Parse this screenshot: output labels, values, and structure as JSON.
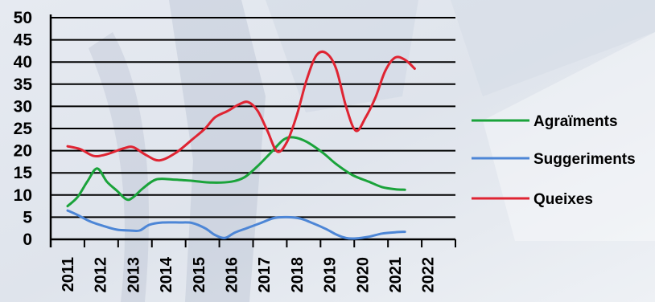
{
  "chart_data": {
    "type": "line",
    "title": "",
    "xlabel": "",
    "ylabel": "",
    "ylim": [
      0,
      50
    ],
    "yticks": [
      0,
      5,
      10,
      15,
      20,
      25,
      30,
      35,
      40,
      45,
      50
    ],
    "xticks": [
      "2011",
      "2012",
      "2013",
      "2014",
      "2015",
      "2016",
      "2017",
      "2018",
      "2019",
      "2020",
      "2021",
      "2022"
    ],
    "grid": true,
    "legend": "right",
    "series": [
      {
        "name": "Agraïments",
        "color": "#1aa33a",
        "points": [
          [
            2011.0,
            7.5
          ],
          [
            2011.3,
            9.5
          ],
          [
            2011.6,
            13
          ],
          [
            2011.9,
            16
          ],
          [
            2012.2,
            13
          ],
          [
            2012.5,
            11
          ],
          [
            2012.8,
            9
          ],
          [
            2013.0,
            9.5
          ],
          [
            2013.3,
            11.5
          ],
          [
            2013.7,
            13.5
          ],
          [
            2014.2,
            13.5
          ],
          [
            2014.8,
            13.2
          ],
          [
            2015.4,
            12.8
          ],
          [
            2016.0,
            13
          ],
          [
            2016.4,
            14
          ],
          [
            2016.8,
            16.5
          ],
          [
            2017.2,
            19.5
          ],
          [
            2017.6,
            22.5
          ],
          [
            2017.9,
            23
          ],
          [
            2018.3,
            22
          ],
          [
            2018.8,
            19.5
          ],
          [
            2019.2,
            17
          ],
          [
            2019.7,
            14.5
          ],
          [
            2020.2,
            13
          ],
          [
            2020.6,
            11.8
          ],
          [
            2021.0,
            11.3
          ],
          [
            2021.3,
            11.2
          ]
        ]
      },
      {
        "name": "Suggeriments",
        "color": "#4d86d6",
        "points": [
          [
            2011.0,
            6.5
          ],
          [
            2011.3,
            5.5
          ],
          [
            2011.7,
            4
          ],
          [
            2012.1,
            3
          ],
          [
            2012.5,
            2.2
          ],
          [
            2012.9,
            2
          ],
          [
            2013.2,
            2
          ],
          [
            2013.5,
            3.3
          ],
          [
            2013.9,
            3.8
          ],
          [
            2014.4,
            3.8
          ],
          [
            2014.8,
            3.7
          ],
          [
            2015.2,
            2.5
          ],
          [
            2015.5,
            1
          ],
          [
            2015.8,
            0.3
          ],
          [
            2016.1,
            1.5
          ],
          [
            2016.5,
            2.6
          ],
          [
            2016.9,
            3.7
          ],
          [
            2017.3,
            4.8
          ],
          [
            2017.7,
            5
          ],
          [
            2018.1,
            4.7
          ],
          [
            2018.5,
            3.6
          ],
          [
            2018.9,
            2.3
          ],
          [
            2019.2,
            1.1
          ],
          [
            2019.5,
            0.3
          ],
          [
            2019.8,
            0.2
          ],
          [
            2020.2,
            0.6
          ],
          [
            2020.6,
            1.3
          ],
          [
            2021.0,
            1.6
          ],
          [
            2021.3,
            1.7
          ]
        ]
      },
      {
        "name": "Queixes",
        "color": "#df2432",
        "points": [
          [
            2011.0,
            21
          ],
          [
            2011.4,
            20.3
          ],
          [
            2011.8,
            18.8
          ],
          [
            2012.2,
            19.2
          ],
          [
            2012.7,
            20.5
          ],
          [
            2013.0,
            20.8
          ],
          [
            2013.4,
            19
          ],
          [
            2013.8,
            17.8
          ],
          [
            2014.3,
            19.5
          ],
          [
            2014.8,
            22.5
          ],
          [
            2015.2,
            25
          ],
          [
            2015.5,
            27.5
          ],
          [
            2015.9,
            29
          ],
          [
            2016.2,
            30.3
          ],
          [
            2016.5,
            31
          ],
          [
            2016.8,
            29
          ],
          [
            2017.1,
            24.5
          ],
          [
            2017.4,
            19.8
          ],
          [
            2017.7,
            22
          ],
          [
            2018.0,
            28
          ],
          [
            2018.3,
            36
          ],
          [
            2018.6,
            41.5
          ],
          [
            2018.9,
            42
          ],
          [
            2019.2,
            38.5
          ],
          [
            2019.5,
            30
          ],
          [
            2019.8,
            24.5
          ],
          [
            2020.1,
            27.5
          ],
          [
            2020.4,
            32
          ],
          [
            2020.7,
            38
          ],
          [
            2021.0,
            41
          ],
          [
            2021.3,
            40.5
          ],
          [
            2021.6,
            38.5
          ]
        ]
      }
    ]
  }
}
